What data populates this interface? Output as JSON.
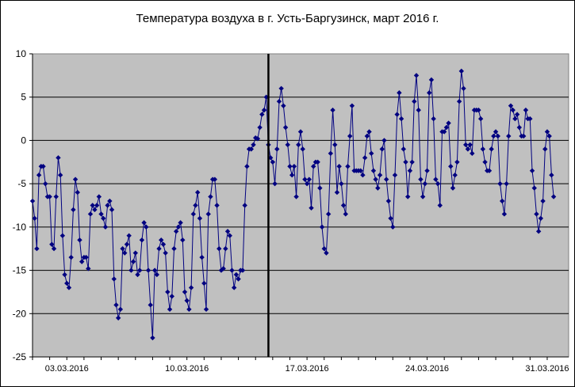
{
  "chart_data": {
    "type": "line",
    "title": "Температура воздуха в г. Усть-Баргузинск, март 2016 г.",
    "xlabel": "",
    "ylabel": "",
    "x_ticks": [
      "03.03.2016",
      "10.03.2016",
      "17.03.2016",
      "24.03.2016",
      "31.03.2016"
    ],
    "x_tick_positions": [
      2.5,
      9.5,
      16.5,
      23.5,
      30.5
    ],
    "x_range": [
      0.5,
      31.75
    ],
    "xlim": [
      0.5,
      31.75
    ],
    "ylim": [
      -25,
      10
    ],
    "y_ticks": [
      -25,
      -20,
      -15,
      -10,
      -5,
      0,
      5,
      10
    ],
    "y_tick_labels": [
      "-25",
      "-20",
      "-15",
      "-10",
      "-5",
      "0",
      "5",
      "10"
    ],
    "grid": "horizontal",
    "plot_background": "#c0c0c0",
    "series_color": "#000080",
    "marker": "diamond",
    "vertical_line_x": 14.25,
    "series": [
      {
        "name": "",
        "x_start": 0.5,
        "x_step": 0.125,
        "values": [
          -7,
          -9,
          -12.5,
          -4,
          -3,
          -3,
          -5,
          -6.5,
          -6.5,
          -12,
          -12.5,
          -6.5,
          -2,
          -4,
          -11,
          -15.5,
          -16.5,
          -17,
          -13.5,
          -8,
          -4.5,
          -6,
          -11.5,
          -14,
          -13.5,
          -13.5,
          -14.8,
          -8.5,
          -7.5,
          -8,
          -7.5,
          -6.5,
          -8.5,
          -9,
          -10,
          -7.5,
          -7,
          -8,
          -16,
          -19,
          -20.5,
          -19.5,
          -12.5,
          -13,
          -12,
          -11,
          -15,
          -14,
          -13,
          -15.5,
          -15,
          -11.5,
          -9.5,
          -10,
          -15,
          -19,
          -22.8,
          -15,
          -15.5,
          -12.5,
          -11.5,
          -12,
          -13,
          -17.5,
          -19.5,
          -18,
          -12.5,
          -10.5,
          -10,
          -9.5,
          -11.5,
          -17.5,
          -18.5,
          -19.5,
          -17,
          -8.5,
          -7.5,
          -6,
          -9,
          -13.5,
          -16.5,
          -19.5,
          -8.5,
          -6.5,
          -4.5,
          -4.5,
          -7.5,
          -12.5,
          -15,
          -14.8,
          -12.5,
          -10.5,
          -11,
          -15,
          -17,
          -15.5,
          -16,
          -15,
          -15,
          -7.5,
          -3,
          -1,
          -1,
          -0.5,
          0.3,
          0.2,
          1.5,
          3,
          3.5,
          5,
          -0.5,
          -2,
          -2.5,
          -5,
          -1,
          4.5,
          6,
          4,
          1.5,
          -0.5,
          -3,
          -4,
          -3,
          -6.5,
          -0.5,
          1,
          -1,
          -4.5,
          -5,
          -4.5,
          -7.8,
          -3,
          -2.5,
          -2.5,
          -5.5,
          -10,
          -12.5,
          -13,
          -8.5,
          -1.5,
          3.5,
          -0.5,
          -6,
          -3,
          -5,
          -7.5,
          -8.5,
          -3,
          0.5,
          4,
          -3.5,
          -3.5,
          -3.5,
          -3.5,
          -4,
          -2,
          0.5,
          1,
          -1.5,
          -3.5,
          -4.5,
          -5.5,
          -4,
          -1,
          0,
          -4.5,
          -7,
          -9,
          -10,
          -4,
          3,
          5.5,
          2.5,
          -1,
          -2.5,
          -6.5,
          -3.5,
          -2.5,
          4.5,
          7.5,
          3.5,
          -4.5,
          -6.5,
          -5,
          -3.5,
          5.5,
          7,
          2.5,
          -4.5,
          -5,
          -7.5,
          1,
          1,
          1.5,
          2,
          -3,
          -5.5,
          -4,
          -2.5,
          4.5,
          8,
          6,
          -0.5,
          -1,
          -0.5,
          -1.5,
          3.5,
          3.5,
          3.5,
          2.5,
          -1,
          -2.5,
          -3.5,
          -3.5,
          -1,
          0.5,
          1,
          0.5,
          -5,
          -7,
          -8.5,
          -5,
          0.5,
          4,
          3.5,
          2.5,
          3,
          1.5,
          0.5,
          0.5,
          3.5,
          2.5,
          2.5,
          -3.5,
          -5.5,
          -8.5,
          -10.5,
          -9,
          -7,
          -1,
          1,
          0.5,
          -4,
          -6.5
        ]
      }
    ]
  }
}
